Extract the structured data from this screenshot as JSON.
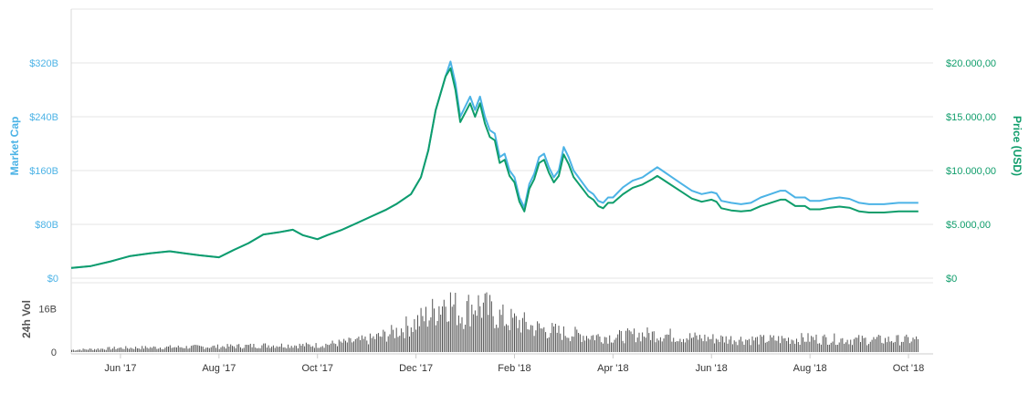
{
  "chart_data": {
    "type": "line",
    "title": "",
    "x_range": [
      0,
      17.5
    ],
    "x_ticks": [
      {
        "month": 1.0,
        "label": "Jun '17"
      },
      {
        "month": 3.0,
        "label": "Aug '17"
      },
      {
        "month": 5.0,
        "label": "Oct '17"
      },
      {
        "month": 7.0,
        "label": "Dec '17"
      },
      {
        "month": 9.0,
        "label": "Feb '18"
      },
      {
        "month": 11.0,
        "label": "Apr '18"
      },
      {
        "month": 13.0,
        "label": "Jun '18"
      },
      {
        "month": 15.0,
        "label": "Aug '18"
      },
      {
        "month": 17.0,
        "label": "Oct '18"
      }
    ],
    "left_axis": {
      "label": "Market Cap",
      "unit": "B",
      "ylim": [
        0,
        400
      ],
      "ticks": [
        "$0",
        "$80B",
        "$160B",
        "$240B",
        "$320B"
      ],
      "tick_values": [
        0,
        80,
        160,
        240,
        320
      ],
      "color": "#4cb3e6"
    },
    "right_axis": {
      "label": "Price (USD)",
      "ylim": [
        0,
        25000
      ],
      "ticks": [
        "$0",
        "$5.000,00",
        "$10.000,00",
        "$15.000,00",
        "$20.000,00"
      ],
      "tick_values": [
        0,
        5000,
        10000,
        15000,
        20000
      ],
      "color": "#0f9d6b"
    },
    "volume_axis": {
      "label": "24h Vol",
      "ylim": [
        0,
        25
      ],
      "ticks": [
        "0",
        "16B"
      ],
      "tick_values": [
        0,
        16
      ]
    },
    "series": [
      {
        "name": "Market Cap",
        "axis": "left",
        "color": "#4cb3e6",
        "points": [
          [
            0.0,
            15
          ],
          [
            0.4,
            18
          ],
          [
            0.8,
            25
          ],
          [
            1.2,
            33
          ],
          [
            1.6,
            37
          ],
          [
            2.0,
            40
          ],
          [
            2.3,
            37
          ],
          [
            2.6,
            34
          ],
          [
            3.0,
            31
          ],
          [
            3.3,
            42
          ],
          [
            3.6,
            52
          ],
          [
            3.9,
            65
          ],
          [
            4.2,
            68
          ],
          [
            4.5,
            72
          ],
          [
            4.7,
            64
          ],
          [
            5.0,
            58
          ],
          [
            5.2,
            64
          ],
          [
            5.5,
            72
          ],
          [
            5.8,
            82
          ],
          [
            6.1,
            92
          ],
          [
            6.4,
            102
          ],
          [
            6.6,
            110
          ],
          [
            6.9,
            125
          ],
          [
            7.1,
            150
          ],
          [
            7.25,
            190
          ],
          [
            7.4,
            250
          ],
          [
            7.5,
            275
          ],
          [
            7.6,
            300
          ],
          [
            7.7,
            322
          ],
          [
            7.8,
            290
          ],
          [
            7.9,
            240
          ],
          [
            8.0,
            255
          ],
          [
            8.1,
            270
          ],
          [
            8.2,
            250
          ],
          [
            8.3,
            270
          ],
          [
            8.4,
            240
          ],
          [
            8.5,
            220
          ],
          [
            8.6,
            215
          ],
          [
            8.7,
            180
          ],
          [
            8.8,
            185
          ],
          [
            8.9,
            160
          ],
          [
            9.0,
            150
          ],
          [
            9.1,
            120
          ],
          [
            9.2,
            105
          ],
          [
            9.3,
            140
          ],
          [
            9.4,
            155
          ],
          [
            9.5,
            180
          ],
          [
            9.6,
            185
          ],
          [
            9.7,
            165
          ],
          [
            9.8,
            150
          ],
          [
            9.9,
            160
          ],
          [
            10.0,
            195
          ],
          [
            10.1,
            180
          ],
          [
            10.2,
            160
          ],
          [
            10.3,
            150
          ],
          [
            10.4,
            140
          ],
          [
            10.5,
            130
          ],
          [
            10.6,
            125
          ],
          [
            10.7,
            115
          ],
          [
            10.8,
            112
          ],
          [
            10.9,
            120
          ],
          [
            11.0,
            120
          ],
          [
            11.2,
            135
          ],
          [
            11.4,
            145
          ],
          [
            11.6,
            150
          ],
          [
            11.8,
            160
          ],
          [
            11.9,
            165
          ],
          [
            12.0,
            160
          ],
          [
            12.2,
            150
          ],
          [
            12.4,
            140
          ],
          [
            12.6,
            130
          ],
          [
            12.8,
            125
          ],
          [
            13.0,
            128
          ],
          [
            13.1,
            126
          ],
          [
            13.2,
            115
          ],
          [
            13.4,
            112
          ],
          [
            13.6,
            110
          ],
          [
            13.8,
            112
          ],
          [
            14.0,
            120
          ],
          [
            14.2,
            125
          ],
          [
            14.4,
            130
          ],
          [
            14.5,
            130
          ],
          [
            14.7,
            120
          ],
          [
            14.9,
            120
          ],
          [
            15.0,
            115
          ],
          [
            15.2,
            115
          ],
          [
            15.4,
            118
          ],
          [
            15.6,
            120
          ],
          [
            15.8,
            118
          ],
          [
            16.0,
            112
          ],
          [
            16.2,
            110
          ],
          [
            16.5,
            110
          ],
          [
            16.8,
            112
          ],
          [
            17.0,
            112
          ],
          [
            17.2,
            112
          ]
        ]
      },
      {
        "name": "Price (USD)",
        "axis": "right",
        "color": "#0f9d6b",
        "points": [
          [
            0.0,
            950
          ],
          [
            0.4,
            1125
          ],
          [
            0.8,
            1560
          ],
          [
            1.2,
            2060
          ],
          [
            1.6,
            2310
          ],
          [
            2.0,
            2500
          ],
          [
            2.3,
            2310
          ],
          [
            2.6,
            2125
          ],
          [
            3.0,
            1940
          ],
          [
            3.3,
            2620
          ],
          [
            3.6,
            3250
          ],
          [
            3.9,
            4060
          ],
          [
            4.2,
            4250
          ],
          [
            4.5,
            4500
          ],
          [
            4.7,
            4000
          ],
          [
            5.0,
            3620
          ],
          [
            5.2,
            4000
          ],
          [
            5.5,
            4500
          ],
          [
            5.8,
            5120
          ],
          [
            6.1,
            5750
          ],
          [
            6.4,
            6370
          ],
          [
            6.6,
            6880
          ],
          [
            6.9,
            7810
          ],
          [
            7.1,
            9370
          ],
          [
            7.25,
            11870
          ],
          [
            7.4,
            15620
          ],
          [
            7.5,
            17180
          ],
          [
            7.6,
            18750
          ],
          [
            7.7,
            19500
          ],
          [
            7.8,
            17500
          ],
          [
            7.9,
            14500
          ],
          [
            8.0,
            15370
          ],
          [
            8.1,
            16250
          ],
          [
            8.2,
            15000
          ],
          [
            8.3,
            16250
          ],
          [
            8.4,
            14370
          ],
          [
            8.5,
            13120
          ],
          [
            8.6,
            12810
          ],
          [
            8.7,
            10700
          ],
          [
            8.8,
            11000
          ],
          [
            8.9,
            9500
          ],
          [
            9.0,
            8900
          ],
          [
            9.1,
            7100
          ],
          [
            9.2,
            6200
          ],
          [
            9.3,
            8300
          ],
          [
            9.4,
            9200
          ],
          [
            9.5,
            10700
          ],
          [
            9.6,
            11000
          ],
          [
            9.7,
            9800
          ],
          [
            9.8,
            8900
          ],
          [
            9.9,
            9500
          ],
          [
            10.0,
            11500
          ],
          [
            10.1,
            10600
          ],
          [
            10.2,
            9400
          ],
          [
            10.3,
            8800
          ],
          [
            10.4,
            8200
          ],
          [
            10.5,
            7600
          ],
          [
            10.6,
            7300
          ],
          [
            10.7,
            6700
          ],
          [
            10.8,
            6500
          ],
          [
            10.9,
            7000
          ],
          [
            11.0,
            7000
          ],
          [
            11.2,
            7800
          ],
          [
            11.4,
            8400
          ],
          [
            11.6,
            8700
          ],
          [
            11.8,
            9200
          ],
          [
            11.9,
            9500
          ],
          [
            12.0,
            9200
          ],
          [
            12.2,
            8600
          ],
          [
            12.4,
            8000
          ],
          [
            12.6,
            7400
          ],
          [
            12.8,
            7100
          ],
          [
            13.0,
            7300
          ],
          [
            13.1,
            7100
          ],
          [
            13.2,
            6500
          ],
          [
            13.4,
            6300
          ],
          [
            13.6,
            6200
          ],
          [
            13.8,
            6300
          ],
          [
            14.0,
            6700
          ],
          [
            14.2,
            7000
          ],
          [
            14.4,
            7300
          ],
          [
            14.5,
            7300
          ],
          [
            14.7,
            6700
          ],
          [
            14.9,
            6700
          ],
          [
            15.0,
            6400
          ],
          [
            15.2,
            6400
          ],
          [
            15.4,
            6550
          ],
          [
            15.6,
            6650
          ],
          [
            15.8,
            6550
          ],
          [
            16.0,
            6200
          ],
          [
            16.2,
            6100
          ],
          [
            16.5,
            6100
          ],
          [
            16.8,
            6200
          ],
          [
            17.0,
            6200
          ],
          [
            17.2,
            6200
          ]
        ]
      }
    ],
    "volume_profile": [
      [
        0.0,
        0.8
      ],
      [
        1.0,
        1.5
      ],
      [
        2.0,
        1.8
      ],
      [
        3.0,
        2.0
      ],
      [
        4.0,
        2.5
      ],
      [
        5.0,
        2.5
      ],
      [
        6.0,
        4.5
      ],
      [
        6.5,
        7
      ],
      [
        7.0,
        11
      ],
      [
        7.3,
        14
      ],
      [
        7.6,
        20
      ],
      [
        7.9,
        14
      ],
      [
        8.2,
        18
      ],
      [
        8.5,
        15
      ],
      [
        8.8,
        12
      ],
      [
        9.1,
        11
      ],
      [
        9.4,
        9
      ],
      [
        9.7,
        8
      ],
      [
        10.0,
        7
      ],
      [
        10.5,
        6
      ],
      [
        11.0,
        5.5
      ],
      [
        11.5,
        6.5
      ],
      [
        12.0,
        6.5
      ],
      [
        12.5,
        5.5
      ],
      [
        13.0,
        5
      ],
      [
        14.0,
        4.5
      ],
      [
        15.0,
        5
      ],
      [
        16.0,
        4.5
      ],
      [
        17.2,
        4.5
      ]
    ]
  }
}
